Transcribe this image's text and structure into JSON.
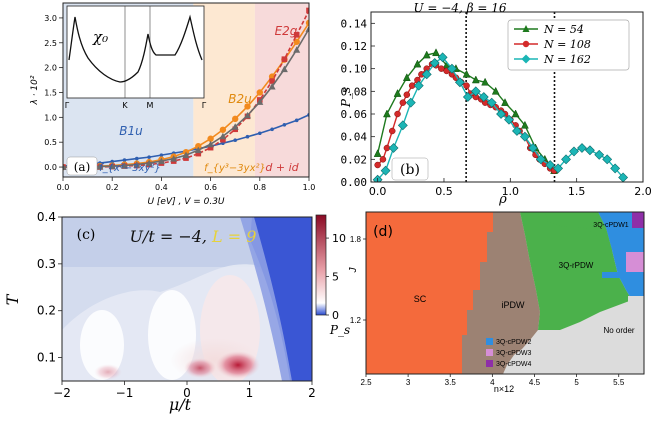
{
  "figure": {
    "panel_labels": [
      "(a)",
      "(b)",
      "(c)",
      "(d)"
    ]
  },
  "chart_data": [
    {
      "id": "a",
      "type": "line",
      "xlabel": "U [eV] , V = 0.3U",
      "ylabel": "λ · 10²",
      "xlim": [
        0,
        1.0
      ],
      "ylim": [
        -0.2,
        3.3
      ],
      "xticks": [
        "0.0",
        "0.2",
        "0.4",
        "0.6",
        "0.8",
        "1.0"
      ],
      "yticks": [
        "0.0",
        "0.5",
        "1.0",
        "1.5",
        "2.0",
        "2.5",
        "3.0"
      ],
      "regions": [
        {
          "label": "B1u",
          "x_range": [
            0,
            0.53
          ],
          "color": "#dbe4f1"
        },
        {
          "label": "B2u",
          "x_range": [
            0.53,
            0.78
          ],
          "color": "#fde8d2"
        },
        {
          "label": "E2g",
          "x_range": [
            0.78,
            1.0
          ],
          "color": "#f7dada"
        }
      ],
      "region_labels": [
        "B1u",
        "B2u",
        "E2g",
        "f_{x³−3xy²}",
        "f_{y³−3yx²}",
        "d + id"
      ],
      "series": [
        {
          "name": "B1u",
          "color": "#2f5fb0",
          "x": [
            0.0,
            0.05,
            0.1,
            0.15,
            0.2,
            0.25,
            0.3,
            0.35,
            0.4,
            0.45,
            0.5,
            0.55,
            0.6,
            0.65,
            0.7,
            0.75,
            0.8,
            0.85,
            0.9,
            0.95,
            1.0
          ],
          "y": [
            0.02,
            0.04,
            0.06,
            0.08,
            0.11,
            0.14,
            0.17,
            0.2,
            0.24,
            0.28,
            0.32,
            0.37,
            0.42,
            0.48,
            0.54,
            0.61,
            0.68,
            0.76,
            0.85,
            0.94,
            1.05
          ]
        },
        {
          "name": "B2u",
          "color": "#f28a1e",
          "x": [
            0.0,
            0.05,
            0.1,
            0.15,
            0.2,
            0.25,
            0.3,
            0.35,
            0.4,
            0.45,
            0.5,
            0.55,
            0.6,
            0.65,
            0.7,
            0.75,
            0.8,
            0.85,
            0.9,
            0.95,
            1.0
          ],
          "y": [
            0.0,
            0.0,
            0.01,
            0.02,
            0.03,
            0.05,
            0.07,
            0.1,
            0.15,
            0.21,
            0.3,
            0.42,
            0.57,
            0.75,
            0.97,
            1.22,
            1.5,
            1.82,
            2.16,
            2.52,
            2.9
          ]
        },
        {
          "name": "E2g",
          "color": "#cf3a3a",
          "x": [
            0.0,
            0.05,
            0.1,
            0.15,
            0.2,
            0.25,
            0.3,
            0.35,
            0.4,
            0.45,
            0.5,
            0.55,
            0.6,
            0.65,
            0.7,
            0.75,
            0.8,
            0.85,
            0.9,
            0.95,
            1.0
          ],
          "y": [
            0.0,
            0.0,
            0.0,
            0.0,
            0.01,
            0.02,
            0.03,
            0.05,
            0.08,
            0.12,
            0.18,
            0.27,
            0.39,
            0.55,
            0.76,
            1.02,
            1.35,
            1.73,
            2.17,
            2.66,
            3.15
          ]
        },
        {
          "name": "grey",
          "color": "#6b6b6b",
          "x": [
            0.0,
            0.05,
            0.1,
            0.15,
            0.2,
            0.25,
            0.3,
            0.35,
            0.4,
            0.45,
            0.5,
            0.55,
            0.6,
            0.65,
            0.7,
            0.75,
            0.8,
            0.85,
            0.9,
            0.95,
            1.0
          ],
          "y": [
            0.0,
            0.0,
            0.0,
            0.01,
            0.02,
            0.03,
            0.05,
            0.08,
            0.12,
            0.17,
            0.24,
            0.34,
            0.46,
            0.62,
            0.81,
            1.04,
            1.31,
            1.62,
            1.97,
            2.36,
            2.78
          ]
        }
      ],
      "inset": {
        "label": "χ₀",
        "xticks": [
          "Γ",
          "K",
          "M",
          "Γ"
        ]
      }
    },
    {
      "id": "b",
      "type": "line",
      "xlabel": "ρ",
      "ylabel": "P_s",
      "title": "U = −4, β = 16",
      "xlim": [
        -0.05,
        2.0
      ],
      "ylim": [
        0,
        0.15
      ],
      "xticks": [
        "0.0",
        "0.5",
        "1.0",
        "1.5",
        "2.0"
      ],
      "yticks": [
        "0.00",
        "0.02",
        "0.04",
        "0.06",
        "0.08",
        "0.10",
        "0.12",
        "0.14"
      ],
      "vlines": [
        0.667,
        1.333
      ],
      "legend": [
        "N = 54",
        "N = 108",
        "N = 162"
      ],
      "series": [
        {
          "name": "N = 54",
          "color": "#1e7a1e",
          "x": [
            0.0,
            0.07,
            0.15,
            0.22,
            0.3,
            0.37,
            0.44,
            0.52,
            0.59,
            0.67,
            0.74,
            0.81,
            0.89,
            0.96,
            1.04,
            1.11,
            1.19,
            1.26,
            1.33
          ],
          "y": [
            0.025,
            0.06,
            0.078,
            0.092,
            0.104,
            0.112,
            0.114,
            0.103,
            0.1,
            0.095,
            0.09,
            0.088,
            0.08,
            0.07,
            0.06,
            0.05,
            0.03,
            0.02,
            0.01
          ]
        },
        {
          "name": "N = 108",
          "color": "#d42a2a",
          "x": [
            0.0,
            0.04,
            0.07,
            0.11,
            0.15,
            0.19,
            0.22,
            0.26,
            0.3,
            0.33,
            0.37,
            0.41,
            0.44,
            0.48,
            0.52,
            0.56,
            0.59,
            0.63,
            0.67,
            0.7,
            0.74,
            0.78,
            0.81,
            0.85,
            0.89,
            0.93,
            0.96,
            1.0,
            1.04,
            1.07,
            1.11,
            1.15,
            1.19,
            1.22,
            1.26,
            1.3,
            1.33
          ],
          "y": [
            0.015,
            0.02,
            0.03,
            0.045,
            0.06,
            0.07,
            0.077,
            0.085,
            0.09,
            0.095,
            0.1,
            0.104,
            0.103,
            0.1,
            0.098,
            0.095,
            0.092,
            0.088,
            0.085,
            0.078,
            0.075,
            0.073,
            0.07,
            0.068,
            0.066,
            0.063,
            0.06,
            0.055,
            0.05,
            0.045,
            0.04,
            0.03,
            0.024,
            0.02,
            0.016,
            0.012,
            0.01
          ]
        },
        {
          "name": "N = 162",
          "color": "#1bb5b5",
          "x": [
            0.0,
            0.06,
            0.12,
            0.19,
            0.25,
            0.31,
            0.37,
            0.43,
            0.49,
            0.56,
            0.62,
            0.68,
            0.74,
            0.8,
            0.86,
            0.93,
            0.99,
            1.05,
            1.11,
            1.17,
            1.23,
            1.3,
            1.36,
            1.42,
            1.48,
            1.54,
            1.6,
            1.67,
            1.73,
            1.79,
            1.85
          ],
          "y": [
            0.002,
            0.01,
            0.03,
            0.05,
            0.07,
            0.085,
            0.095,
            0.105,
            0.11,
            0.1,
            0.088,
            0.075,
            0.08,
            0.075,
            0.07,
            0.06,
            0.055,
            0.045,
            0.04,
            0.03,
            0.02,
            0.015,
            0.012,
            0.02,
            0.027,
            0.03,
            0.028,
            0.024,
            0.02,
            0.012,
            0.004
          ]
        }
      ]
    },
    {
      "id": "c",
      "type": "heatmap",
      "xlabel": "μ/t",
      "ylabel": "T",
      "annotation": "U/t = −4, L = 9",
      "annotation_parts": [
        "U/t = −4,",
        "L = 9"
      ],
      "xlim": [
        -2,
        2
      ],
      "ylim": [
        0.05,
        0.4
      ],
      "xticks": [
        "−2",
        "−1",
        "0",
        "1",
        "2"
      ],
      "yticks": [
        "0.1",
        "0.2",
        "0.3",
        "0.4"
      ],
      "colorbar": {
        "label": "P_s",
        "ticks": [
          "0",
          "5",
          "10"
        ],
        "range": [
          0,
          13
        ]
      }
    },
    {
      "id": "d",
      "type": "heatmap",
      "xlabel": "n×12",
      "ylabel": "J",
      "xlim": [
        2.5,
        5.8
      ],
      "ylim": [
        0.8,
        2.0
      ],
      "xticks": [
        "2.5",
        "3",
        "3.5",
        "4",
        "4.5",
        "5",
        "5.5"
      ],
      "yticks": [
        "1.2",
        "1.8"
      ],
      "regions": [
        {
          "label": "SC",
          "color": "#f46a3c"
        },
        {
          "label": "iPDW",
          "color": "#9c8273"
        },
        {
          "label": "3Q-rPDW",
          "color": "#4bb14b"
        },
        {
          "label": "3Q-cPDW1",
          "color": "#2f8ee0"
        },
        {
          "label": "No order",
          "color": "#dcdcdc"
        }
      ],
      "legend": [
        "3Q-cPDW2",
        "3Q-cPDW3",
        "3Q-cPDW4"
      ],
      "legend_colors": [
        "#2f8ee0",
        "#d68ed6",
        "#8e2fa8"
      ]
    }
  ]
}
